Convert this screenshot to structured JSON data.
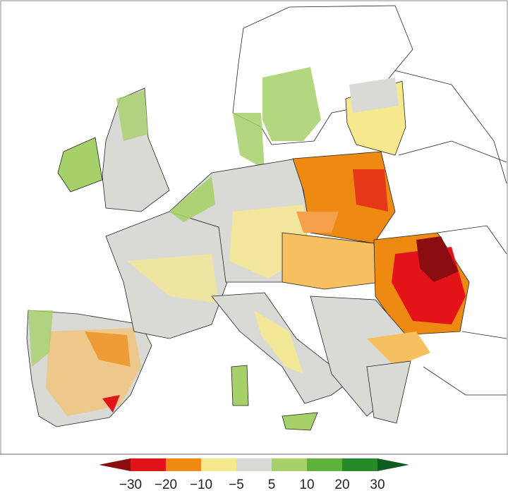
{
  "colorbar": {
    "ticks": [
      {
        "value": -30,
        "label": "−30"
      },
      {
        "value": -20,
        "label": "−20"
      },
      {
        "value": -10,
        "label": "−10"
      },
      {
        "value": -5,
        "label": "−5"
      },
      5,
      10,
      20,
      30
    ],
    "colors": [
      "#8b0d12",
      "#e2141a",
      "#ee8a12",
      "#f6e88c",
      "#d9d9d6",
      "#a6d06a",
      "#5fb13a",
      "#268a2b",
      "#0d5e1e"
    ]
  }
}
